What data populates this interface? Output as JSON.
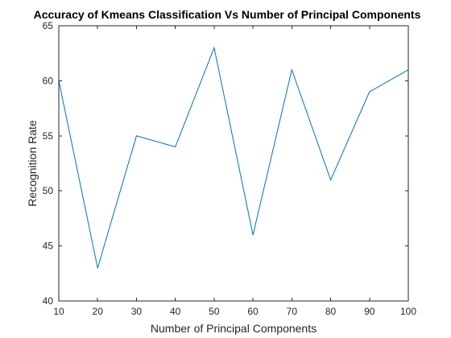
{
  "chart_data": {
    "type": "line",
    "title": "Accuracy of Kmeans Classification Vs Number of Principal Components",
    "xlabel": "Number of Principal Components",
    "ylabel": "Recognition Rate",
    "xlim": [
      10,
      100
    ],
    "ylim": [
      40,
      65
    ],
    "xticks": [
      10,
      20,
      30,
      40,
      50,
      60,
      70,
      80,
      90,
      100
    ],
    "yticks": [
      40,
      45,
      50,
      55,
      60,
      65
    ],
    "grid": false,
    "series": [
      {
        "color": "#0072bd",
        "x": [
          10,
          20,
          30,
          40,
          50,
          60,
          70,
          80,
          90,
          100
        ],
        "y": [
          60,
          43,
          55,
          54,
          63,
          46,
          61,
          51,
          59,
          61
        ]
      }
    ]
  }
}
